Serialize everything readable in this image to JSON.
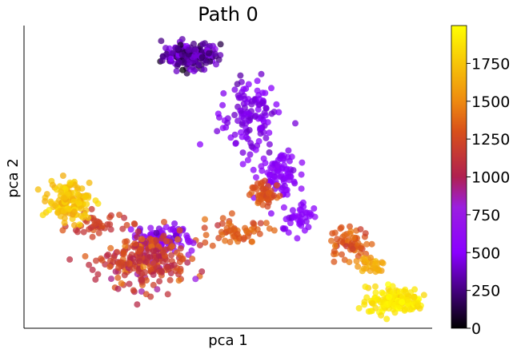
{
  "chart_data": {
    "type": "scatter",
    "title": "Path 0",
    "xlabel": "pca 1",
    "ylabel": "pca 2",
    "x_ticks_shown": false,
    "y_ticks_shown": false,
    "grid": false,
    "colormap": "gnuplot",
    "colorbar": {
      "range": [
        0,
        2000
      ],
      "tick_values": [
        0,
        250,
        500,
        750,
        1000,
        1250,
        1500,
        1750
      ],
      "tick_labels": [
        "0",
        "250",
        "500",
        "750",
        "1000",
        "1250",
        "1500",
        "1750"
      ]
    },
    "clusters": [
      {
        "label": "top",
        "cx": 0.41,
        "cy": 0.9,
        "sx": 0.035,
        "sy": 0.022,
        "n": 170,
        "c_mean": 300,
        "c_spread": 130
      },
      {
        "label": "upper-branch",
        "cx": 0.55,
        "cy": 0.7,
        "sx": 0.035,
        "sy": 0.06,
        "n": 120,
        "c_mean": 450,
        "c_spread": 50
      },
      {
        "label": "mid-branch",
        "cx": 0.62,
        "cy": 0.52,
        "sx": 0.025,
        "sy": 0.035,
        "n": 90,
        "c_mean": 520,
        "c_spread": 40
      },
      {
        "label": "junction",
        "cx": 0.59,
        "cy": 0.44,
        "sx": 0.018,
        "sy": 0.022,
        "n": 50,
        "c_mean": 1300,
        "c_spread": 60
      },
      {
        "label": "lower-right-branch",
        "cx": 0.67,
        "cy": 0.37,
        "sx": 0.025,
        "sy": 0.025,
        "n": 40,
        "c_mean": 520,
        "c_spread": 40
      },
      {
        "label": "left-bridge",
        "cx": 0.52,
        "cy": 0.32,
        "sx": 0.04,
        "sy": 0.025,
        "n": 55,
        "c_mean": 1300,
        "c_spread": 70
      },
      {
        "label": "left-purple",
        "cx": 0.34,
        "cy": 0.3,
        "sx": 0.035,
        "sy": 0.02,
        "n": 90,
        "c_mean": 550,
        "c_spread": 100
      },
      {
        "label": "left-red",
        "cx": 0.3,
        "cy": 0.22,
        "sx": 0.05,
        "sy": 0.045,
        "n": 260,
        "c_mean": 1150,
        "c_spread": 130
      },
      {
        "label": "left-tail",
        "cx": 0.18,
        "cy": 0.34,
        "sx": 0.035,
        "sy": 0.018,
        "n": 40,
        "c_mean": 1200,
        "c_spread": 80
      },
      {
        "label": "far-left",
        "cx": 0.11,
        "cy": 0.42,
        "sx": 0.025,
        "sy": 0.03,
        "n": 140,
        "c_mean": 1720,
        "c_spread": 70
      },
      {
        "label": "right-orange",
        "cx": 0.8,
        "cy": 0.28,
        "sx": 0.025,
        "sy": 0.025,
        "n": 60,
        "c_mean": 1330,
        "c_spread": 70
      },
      {
        "label": "right-lower",
        "cx": 0.85,
        "cy": 0.21,
        "sx": 0.02,
        "sy": 0.02,
        "n": 30,
        "c_mean": 1620,
        "c_spread": 60
      },
      {
        "label": "bottom-right",
        "cx": 0.91,
        "cy": 0.09,
        "sx": 0.035,
        "sy": 0.022,
        "n": 150,
        "c_mean": 1900,
        "c_spread": 60
      }
    ]
  }
}
